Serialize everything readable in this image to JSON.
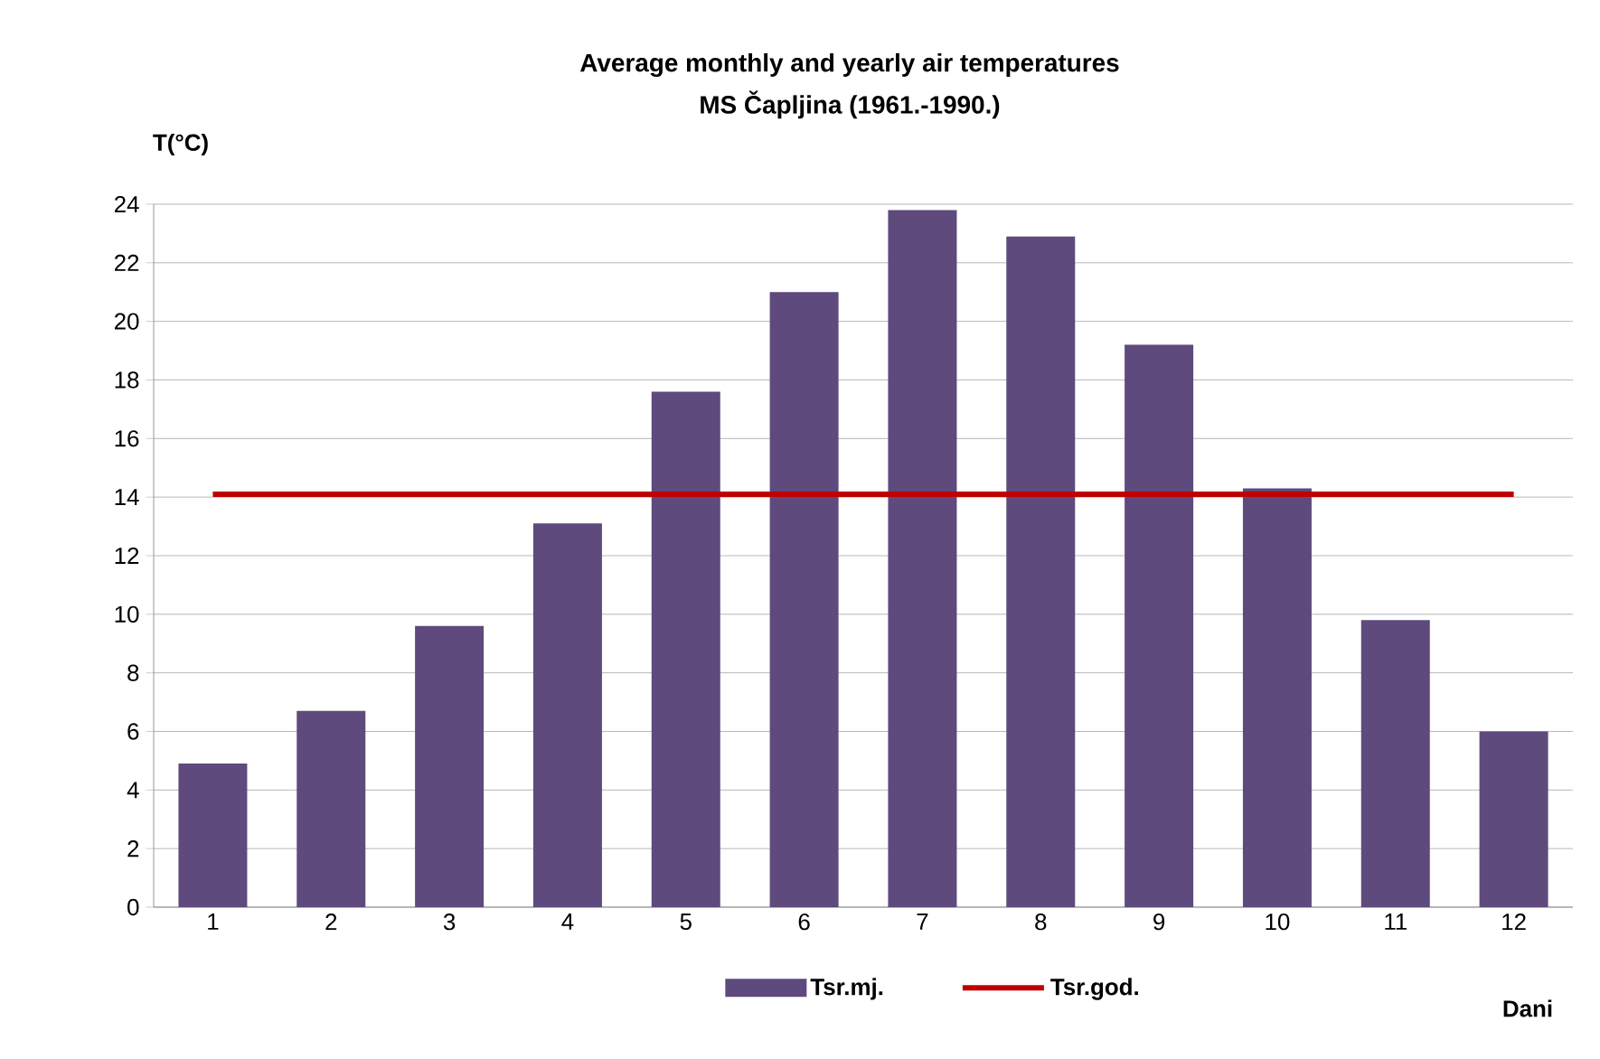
{
  "chart_data": {
    "type": "bar",
    "title": "Average monthly and yearly air temperatures",
    "subtitle": "MS Čapljina (1961.-1990.)",
    "ylabel": "T(°C)",
    "xlabel": "Dani",
    "categories": [
      "1",
      "2",
      "3",
      "4",
      "5",
      "6",
      "7",
      "8",
      "9",
      "10",
      "11",
      "12"
    ],
    "series": [
      {
        "name": "Tsr.mj.",
        "color": "#5e4a7c",
        "values": [
          4.9,
          6.7,
          9.6,
          13.1,
          17.6,
          21.0,
          23.8,
          22.9,
          19.2,
          14.3,
          9.8,
          6.0
        ]
      },
      {
        "name": "Tsr.god.",
        "type": "line",
        "color": "#c00000",
        "values": [
          14.1,
          14.1,
          14.1,
          14.1,
          14.1,
          14.1,
          14.1,
          14.1,
          14.1,
          14.1,
          14.1,
          14.1
        ]
      }
    ],
    "ylim": [
      0,
      24
    ],
    "yticks": [
      0,
      2,
      4,
      6,
      8,
      10,
      12,
      14,
      16,
      18,
      20,
      22,
      24
    ],
    "grid": "y",
    "legend": "bottom",
    "marker": "none"
  }
}
